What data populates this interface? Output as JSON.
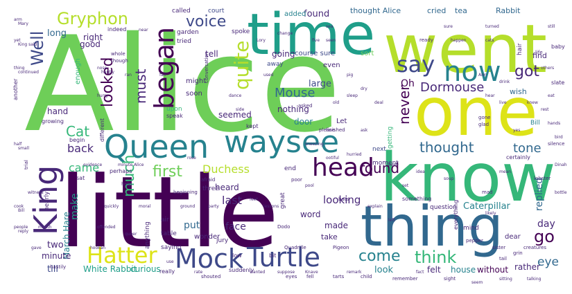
{
  "palette": {
    "background": "#ffffff",
    "dark_purple": "#440154",
    "indigo": "#482878",
    "purple_blue": "#3e4989",
    "slate_blue": "#31688e",
    "teal_blue": "#26828e",
    "teal": "#1f9e89",
    "green": "#35b779",
    "light_green": "#6ece58",
    "lime": "#b5de2b",
    "yellow": "#dde318"
  },
  "words": {
    "alice": "Alice",
    "little": "little",
    "went": "went",
    "time": "time",
    "one": "one",
    "know": "know",
    "thing": "thing",
    "queen": "Queen",
    "waysee": "waysee",
    "king": "King",
    "hatter": "Hatter",
    "mock": "Mock",
    "turtle": "Turtle",
    "head": "head",
    "began": "began",
    "gryphon": "Gryphon",
    "say": "say",
    "now": "now",
    "voice": "voice",
    "well": "Well",
    "quite": "quite",
    "got": "got",
    "go": "go",
    "think": "think",
    "come": "come",
    "looked": "looked",
    "must": "must",
    "much": "much",
    "mouse": "Mouse",
    "dormouse": "Dormouse",
    "oh": "Oh",
    "never": "never",
    "cat": "Cat",
    "first": "first",
    "round": "round",
    "thought": "thought",
    "tone": "tone",
    "duchess": "Duchess",
    "back": "back",
    "came": "came",
    "make": "make",
    "looking": "looking",
    "eye": "eye",
    "last": "last",
    "march_hare": "March Hare",
    "replied": "replied",
    "day": "day",
    "caterpillar": "Caterpillar",
    "white_rabbit": "White Rabbit",
    "curious": "curious",
    "two": "two",
    "till": "till",
    "minute": "minute",
    "look": "look",
    "felt": "felt",
    "house": "house",
    "without": "without",
    "rather": "rather",
    "put": "put",
    "face": "face",
    "seemed": "seemed",
    "nothing": "nothing",
    "door": "door",
    "large": "large",
    "found": "found",
    "thought_alice": "thought Alice",
    "cried": "cried",
    "tea": "tea",
    "rabbit": "Rabbit",
    "course_sure": "course sure",
    "sort": "sort",
    "called": "called",
    "court": "court",
    "added": "added",
    "long": "long",
    "right": "right",
    "good": "good",
    "going": "going",
    "tell": "tell",
    "hand": "hand",
    "soon": "soon",
    "might": "might",
    "heard": "heard",
    "made": "made",
    "word": "word",
    "take": "take",
    "question": "question",
    "next": "next",
    "let": "Let",
    "wish": "wish",
    "find": "find",
    "hair": "hair",
    "mind": "mind",
    "dear": "dear",
    "bill": "Bill",
    "even": "even",
    "away": "away",
    "arm": "arm",
    "tried": "tried",
    "garden": "garden",
    "enough": "enough",
    "spoke": "spoke",
    "wonder": "wonder",
    "three": "three",
    "table": "table",
    "saying": "saying",
    "anything": "anything",
    "jury": "jury",
    "air": "air",
    "upon": "upon",
    "yet": "yet",
    "speak": "speak",
    "perhaps": "perhaps",
    "begin": "begin",
    "end": "end",
    "great": "great",
    "moment": "moment",
    "getting": "getting",
    "nearly": "nearly",
    "another": "another",
    "growing": "growing",
    "different": "different",
    "indeed": "indeed",
    "thing_small": "thing",
    "something": "something",
    "everything": "everything",
    "certainly": "certainly",
    "suddenly": "suddenly",
    "shouted": "shouted",
    "remember": "remember",
    "kept": "kept",
    "low": "low",
    "bit": "bit",
    "really": "really",
    "half": "half",
    "cook": "cook",
    "baby": "baby",
    "life": "life",
    "slate": "slate",
    "finished": "finished",
    "people": "people",
    "please": "please",
    "nose": "nose",
    "gone": "gone",
    "glad": "glad",
    "hurry": "hurry",
    "sat": "sat",
    "help": "help",
    "ran": "ran",
    "near": "near",
    "fan": "fan",
    "dance": "dance",
    "side": "side",
    "used": "used",
    "change": "change",
    "sea": "sea",
    "seen": "seen",
    "pig": "pig",
    "sleep": "sleep",
    "ask": "ask",
    "explain": "explain",
    "trial": "trial",
    "whole": "whole",
    "though": "though",
    "left": "left",
    "idea": "idea",
    "sure": "sure",
    "happen": "happen",
    "turned": "turned",
    "beginning": "beginning",
    "asked": "asked",
    "poor": "poor",
    "cats": "cats",
    "live": "live",
    "yes": "yes",
    "knew": "knew",
    "rest": "rest",
    "tone_small": "hands",
    "bird": "bird",
    "dinah": "Dinah",
    "bottle": "bottle",
    "mean": "mean",
    "likely": "likely",
    "soup": "soup",
    "set": "set",
    "best": "best",
    "pool": "pool",
    "lessons": "lessons",
    "feet": "feet",
    "party": "party",
    "door_small": "ground",
    "moral": "moral",
    "sister": "sister",
    "quickly": "quickly",
    "grin": "grin",
    "offended": "offended",
    "hookah": "hookah",
    "mad": "mad",
    "queen_small": "queer",
    "tail": "tail",
    "use": "use",
    "rate": "rate",
    "sight": "sight",
    "wanted": "wanted",
    "suppose": "suppose",
    "knave": "Knave",
    "next_small": "remark",
    "fact": "fact",
    "seem": "seem",
    "sitting": "sitting",
    "conversation": "conversation",
    "dodo": "Dodo",
    "fell": "fell",
    "talking": "talking",
    "afraid": "afraid",
    "witness": "witness",
    "gave": "gave",
    "mouth": "mouth",
    "evidence": "evidence",
    "minute_small": "minute Alice",
    "bats": "bats",
    "rose": "rose",
    "tarts": "tarts",
    "child": "child",
    "sneezing": "sneezing",
    "pepper": "pepper",
    "ootiful": "ootiful",
    "hurried": "hurried",
    "eat": "eat",
    "pigeon": "Pigeon",
    "ready": "ready",
    "others": "others",
    "still": "still",
    "drink": "drink",
    "hear": "hear",
    "added_small": "Ann",
    "eyes": "eyes",
    "deal": "deal",
    "mouse_small": "dry",
    "old": "old",
    "five": "five",
    "lobster": "lobster",
    "hastily": "hastily",
    "lory": "Lory",
    "moment_small": "Mary",
    "king_small": "King said",
    "nothing_small": "continued",
    "curious_small": "small",
    "creatures": "creatures",
    "quadrille": "Quadrille",
    "bill_small": "Bill",
    "replied_small": "reply",
    "time_small": "hardly",
    "silence": "silence"
  }
}
